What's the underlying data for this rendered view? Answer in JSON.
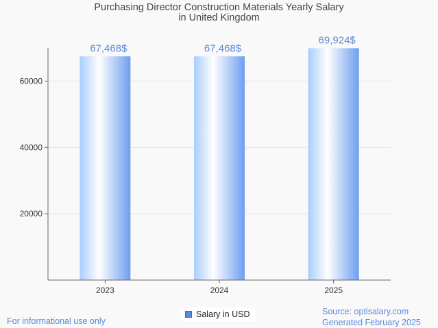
{
  "chart_data": {
    "type": "bar",
    "title_lines": [
      "Purchasing Director Construction Materials Yearly Salary",
      "in United Kingdom"
    ],
    "categories": [
      "2023",
      "2024",
      "2025"
    ],
    "values": [
      67468,
      67468,
      69924
    ],
    "value_labels": [
      "67,468$",
      "67,468$",
      "69,924$"
    ],
    "series": [
      {
        "name": "Salary in USD",
        "values": [
          67468,
          67468,
          69924
        ]
      }
    ],
    "ylim": [
      0,
      70000
    ],
    "yticks": [
      20000,
      40000,
      60000
    ],
    "grid": true,
    "legend_position": "bottom"
  },
  "colors": {
    "bar_light": "#ffffff",
    "bar_mid": "#a9cdfd",
    "bar_dark": "#6d9ef0",
    "label": "#5b8ad8"
  },
  "footer": {
    "disclaimer": "For informational use only",
    "source": "Source: optisalary.com",
    "generated": "Generated February 2025"
  }
}
